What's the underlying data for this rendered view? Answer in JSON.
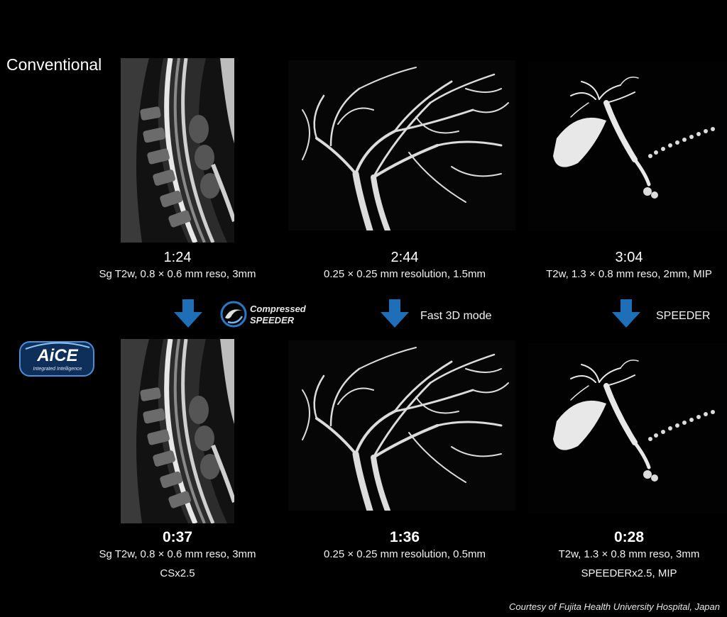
{
  "row_label": "Conventional",
  "conventional": [
    {
      "time": "1:24",
      "desc": "Sg T2w, 0.8 × 0.6 mm reso, 3mm"
    },
    {
      "time": "2:44",
      "desc": "0.25 × 0.25 mm resolution, 1.5mm"
    },
    {
      "time": "3:04",
      "desc": "T2w, 1.3 × 0.8 mm reso, 2mm, MIP"
    }
  ],
  "methods": {
    "cs_logo_line1": "Compressed",
    "cs_logo_line2": "SPEEDER",
    "fast3d": "Fast 3D mode",
    "speeder": "SPEEDER"
  },
  "aice": {
    "name": "AiCE",
    "tagline": "Integrated Intelligence"
  },
  "accelerated": [
    {
      "time": "0:37",
      "desc": "Sg T2w, 0.8 × 0.6 mm reso, 3mm",
      "desc2": "CSx2.5"
    },
    {
      "time": "1:36",
      "desc": "0.25 × 0.25 mm resolution, 0.5mm",
      "desc2": ""
    },
    {
      "time": "0:28",
      "desc": "T2w, 1.3 × 0.8 mm reso, 3mm",
      "desc2": "SPEEDERx2.5, MIP"
    }
  ],
  "credit": "Courtesy of Fujita Health University Hospital, Japan",
  "colors": {
    "arrow": "#1e6fb8",
    "background": "#000000"
  }
}
